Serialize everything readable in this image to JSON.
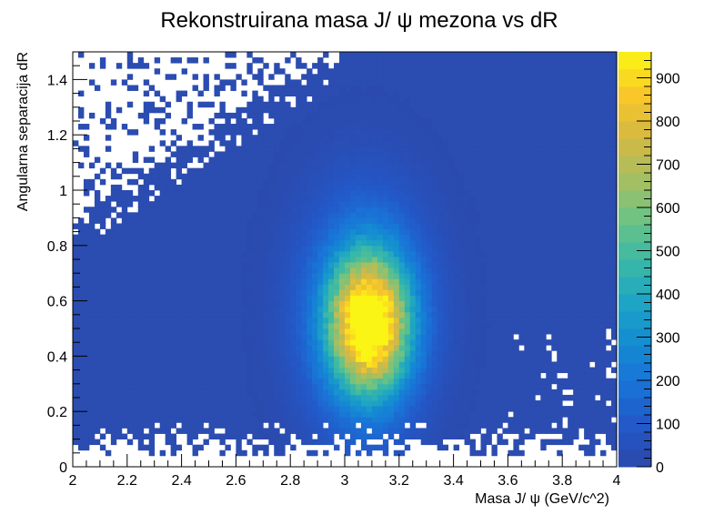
{
  "chart_data": {
    "type": "heatmap",
    "title": "Rekonstruirana masa J/ ψ mezona vs dR",
    "xlabel": "Masa J/ ψ (GeV/c^2)",
    "ylabel": "Angularna separacija dR",
    "xlim": [
      2,
      4
    ],
    "ylim": [
      0,
      1.5
    ],
    "zlim": [
      0,
      960
    ],
    "x_ticks": [
      "2",
      "2.2",
      "2.4",
      "2.6",
      "2.8",
      "3",
      "3.2",
      "3.4",
      "3.6",
      "3.8",
      "4"
    ],
    "y_ticks": [
      "0",
      "0.2",
      "0.4",
      "0.6",
      "0.8",
      "1",
      "1.2",
      "1.4"
    ],
    "z_ticks": [
      "0",
      "100",
      "200",
      "300",
      "400",
      "500",
      "600",
      "700",
      "800",
      "900"
    ],
    "peak": {
      "x": 3.09,
      "y": 0.52,
      "count": 930
    },
    "colormap": "kBird (dark blue to yellow)",
    "background_color": "#2b4cb0",
    "empty_bin_color": "#ffffff",
    "grid": false,
    "legend": "color palette on right"
  }
}
